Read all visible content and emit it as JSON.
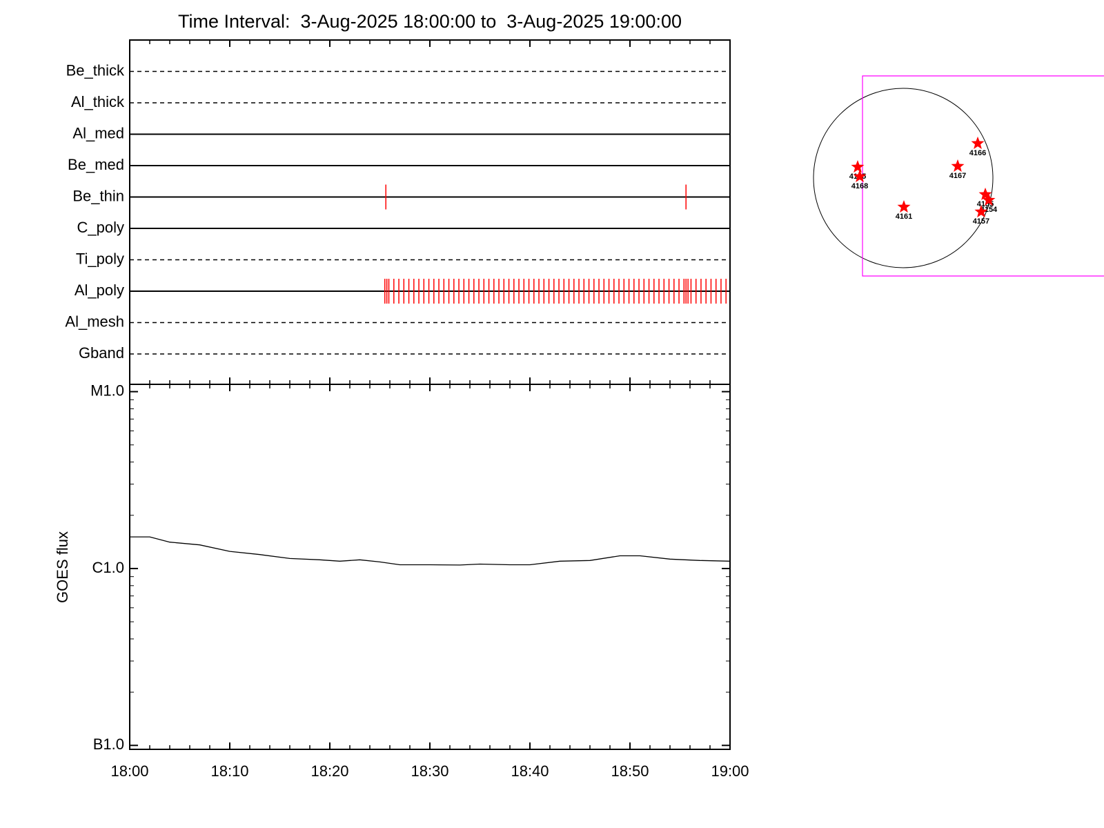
{
  "chart_data": [
    {
      "type": "timeline",
      "title": "Time Interval:  3-Aug-2025 18:00:00 to  3-Aug-2025 19:00:00",
      "categories": [
        "Be_thick",
        "Al_thick",
        "Al_med",
        "Be_med",
        "Be_thin",
        "C_poly",
        "Ti_poly",
        "Al_poly",
        "Al_mesh",
        "Gband"
      ],
      "line_styles": [
        "dashed",
        "dashed",
        "solid",
        "solid",
        "solid",
        "solid",
        "dashed",
        "solid",
        "dashed",
        "dashed"
      ],
      "color": "#ff0000",
      "events": [
        [],
        [],
        [],
        [],
        [
          25.6,
          55.6
        ],
        [],
        [],
        [
          25.5,
          25.7,
          25.9,
          26.4,
          26.9,
          27.4,
          27.9,
          28.4,
          28.9,
          29.4,
          29.9,
          30.4,
          30.9,
          31.4,
          31.9,
          32.4,
          32.9,
          33.4,
          33.9,
          34.4,
          34.9,
          35.4,
          35.9,
          36.4,
          36.9,
          37.4,
          37.9,
          38.4,
          38.9,
          39.4,
          39.9,
          40.4,
          40.9,
          41.4,
          41.9,
          42.4,
          42.9,
          43.4,
          43.9,
          44.4,
          44.9,
          45.4,
          45.9,
          46.4,
          46.9,
          47.4,
          47.9,
          48.4,
          48.9,
          49.4,
          49.9,
          50.4,
          50.9,
          51.4,
          51.9,
          52.4,
          52.9,
          53.4,
          53.9,
          54.4,
          54.9,
          55.4,
          55.6,
          55.8,
          56.1,
          56.6,
          57.1,
          57.6,
          58.1,
          58.6,
          59.1,
          59.6
        ],
        [],
        []
      ]
    },
    {
      "type": "line",
      "ylabel": "GOES flux",
      "log_scale": true,
      "color": "#000000",
      "x": [
        0,
        2,
        4,
        7,
        10,
        13,
        16,
        19,
        21,
        23,
        25,
        27,
        30,
        33,
        35,
        38,
        40,
        43,
        46,
        49,
        51,
        54,
        57,
        60
      ],
      "values": [
        1.51e-06,
        1.51e-06,
        1.41e-06,
        1.36e-06,
        1.25e-06,
        1.2e-06,
        1.14e-06,
        1.12e-06,
        1.1e-06,
        1.12e-06,
        1.09e-06,
        1.05e-06,
        1.05e-06,
        1.046e-06,
        1.06e-06,
        1.05e-06,
        1.05e-06,
        1.1e-06,
        1.11e-06,
        1.18e-06,
        1.18e-06,
        1.13e-06,
        1.11e-06,
        1.1e-06
      ],
      "xlim": [
        0,
        60
      ],
      "xticks": [
        {
          "value": 0,
          "label": "18:00"
        },
        {
          "value": 10,
          "label": "18:10"
        },
        {
          "value": 20,
          "label": "18:20"
        },
        {
          "value": 30,
          "label": "18:30"
        },
        {
          "value": 40,
          "label": "18:40"
        },
        {
          "value": 50,
          "label": "18:50"
        },
        {
          "value": 60,
          "label": "19:00"
        }
      ],
      "ylim": [
        9.5e-08,
        1.1e-05
      ],
      "yticks": [
        {
          "value": 1e-07,
          "label": "B1.0"
        },
        {
          "value": 1e-06,
          "label": "C1.0"
        },
        {
          "value": 1e-05,
          "label": "M1.0"
        }
      ]
    },
    {
      "type": "scatter",
      "marker": "star",
      "color": "#ff0000",
      "labels": [
        "4165",
        "4168",
        "4166",
        "4167",
        "4161",
        "4155",
        "4154",
        "4157"
      ],
      "x": [
        -480,
        -458,
        785,
        574,
        7,
        865,
        901,
        821
      ],
      "y": [
        116,
        15,
        364,
        124,
        -305,
        -174,
        -233,
        -356
      ]
    }
  ]
}
